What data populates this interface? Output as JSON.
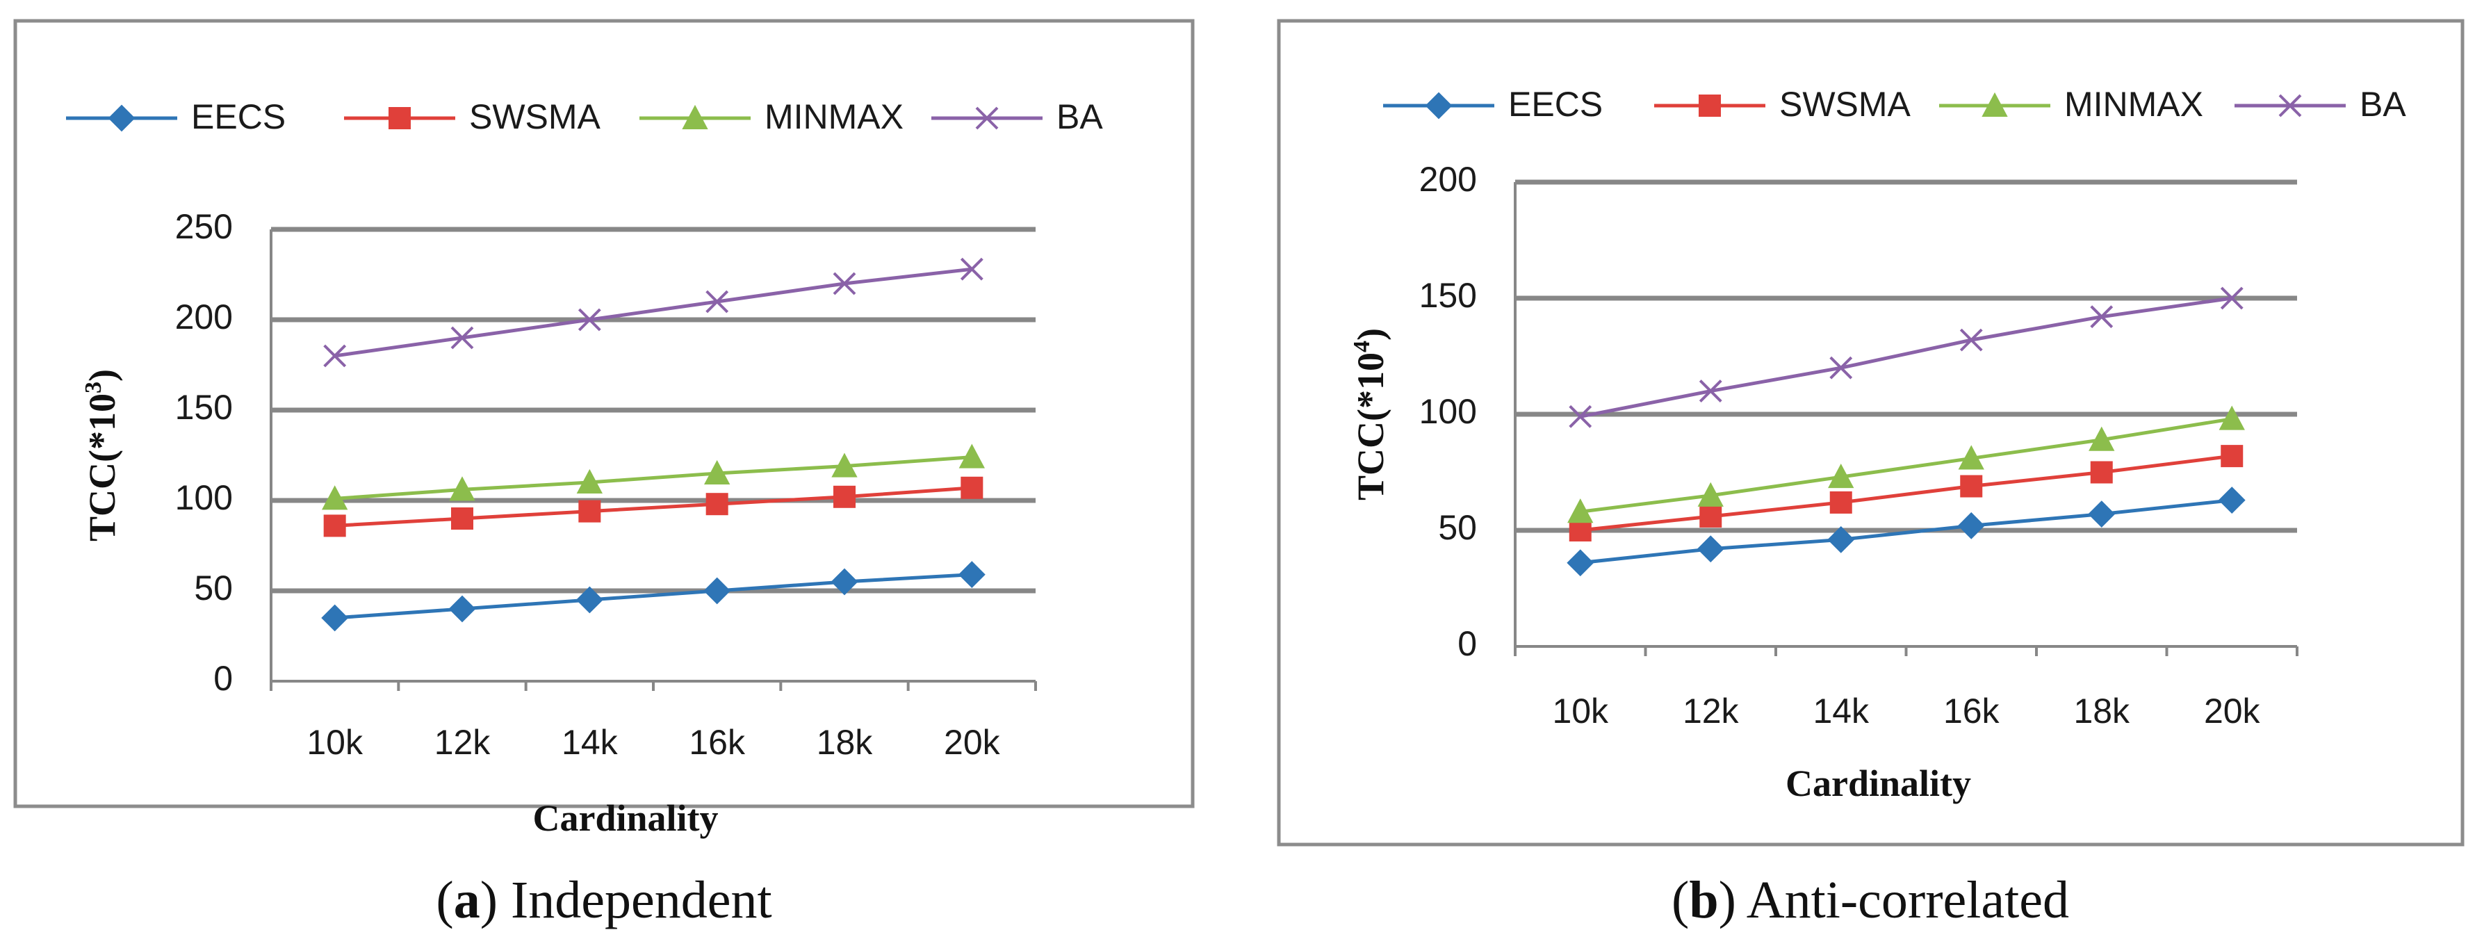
{
  "figure": {
    "captions": [
      {
        "label": "a",
        "text": " Independent"
      },
      {
        "label": "b",
        "text": " Anti-correlated"
      }
    ]
  },
  "legend": [
    {
      "name": "EECS",
      "color": "#2e75b6",
      "marker": "diamond"
    },
    {
      "name": "SWSMA",
      "color": "#e0403a",
      "marker": "square"
    },
    {
      "name": "MINMAX",
      "color": "#8cbd4c",
      "marker": "triangle"
    },
    {
      "name": "BA",
      "color": "#8a62a8",
      "marker": "x"
    }
  ],
  "chart_data": [
    {
      "type": "line",
      "title": "",
      "xlabel": "Cardinality",
      "ylabel_base": "TCC(*10",
      "ylabel_exp": "3",
      "ylabel_close": ")",
      "categories": [
        "10k",
        "12k",
        "14k",
        "16k",
        "18k",
        "20k"
      ],
      "ylim": [
        0,
        250
      ],
      "yticks": [
        0,
        50,
        100,
        150,
        200,
        250
      ],
      "grid": true,
      "legend_position": "top",
      "series": [
        {
          "name": "EECS",
          "values": [
            35,
            40,
            45,
            50,
            55,
            59
          ]
        },
        {
          "name": "SWSMA",
          "values": [
            86,
            90,
            94,
            98,
            102,
            107
          ]
        },
        {
          "name": "MINMAX",
          "values": [
            101,
            106,
            110,
            115,
            119,
            124
          ]
        },
        {
          "name": "BA",
          "values": [
            180,
            190,
            200,
            210,
            220,
            228
          ]
        }
      ]
    },
    {
      "type": "line",
      "title": "",
      "xlabel": "Cardinality",
      "ylabel_base": "TCC(*10",
      "ylabel_exp": "4",
      "ylabel_close": ")",
      "categories": [
        "10k",
        "12k",
        "14k",
        "16k",
        "18k",
        "20k"
      ],
      "ylim": [
        0,
        200
      ],
      "yticks": [
        0,
        50,
        100,
        150,
        200
      ],
      "grid": true,
      "legend_position": "top",
      "series": [
        {
          "name": "EECS",
          "values": [
            36,
            42,
            46,
            52,
            57,
            63
          ]
        },
        {
          "name": "SWSMA",
          "values": [
            50,
            56,
            62,
            69,
            75,
            82
          ]
        },
        {
          "name": "MINMAX",
          "values": [
            58,
            65,
            73,
            81,
            89,
            98
          ]
        },
        {
          "name": "BA",
          "values": [
            99,
            110,
            120,
            132,
            142,
            150
          ]
        }
      ]
    }
  ]
}
